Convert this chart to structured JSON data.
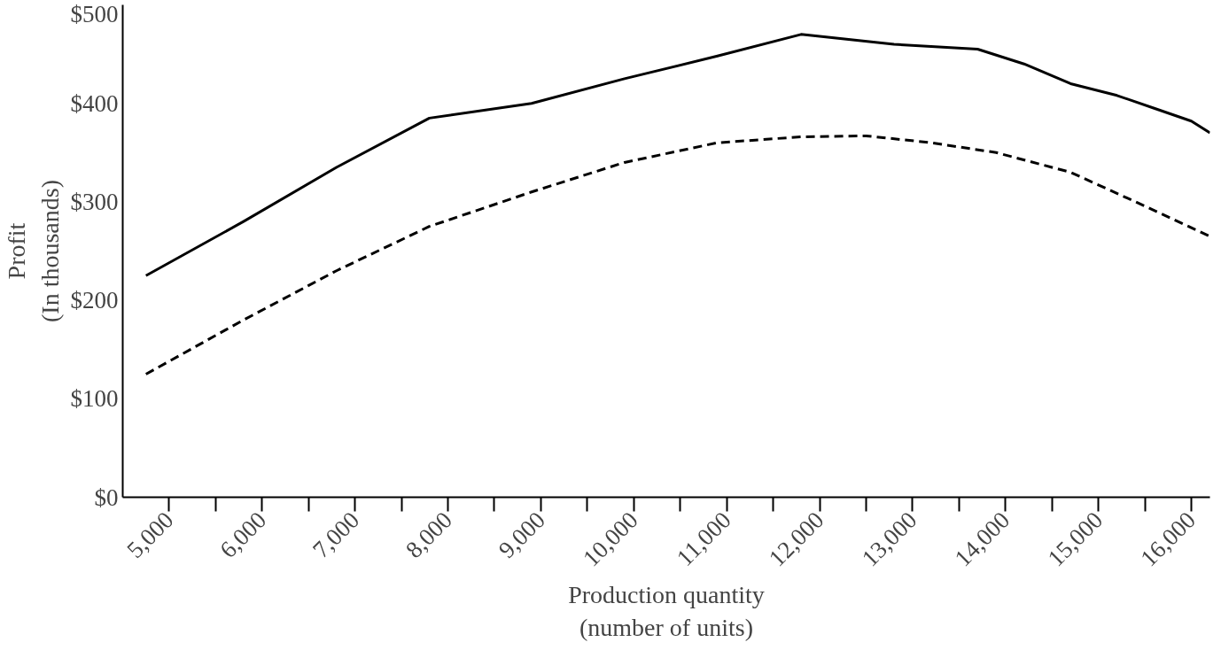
{
  "chart_data": {
    "type": "line",
    "xlabel": "Production quantity\n(number of units)",
    "ylabel": "Profit\n(In thousands)",
    "xlim": [
      4500,
      16200
    ],
    "ylim": [
      0,
      500
    ],
    "xticks": [
      {
        "value": 5000,
        "label": "5,000"
      },
      {
        "value": 5500,
        "label": null
      },
      {
        "value": 6000,
        "label": "6,000"
      },
      {
        "value": 6500,
        "label": null
      },
      {
        "value": 7000,
        "label": "7,000"
      },
      {
        "value": 7500,
        "label": null
      },
      {
        "value": 8000,
        "label": "8,000"
      },
      {
        "value": 8500,
        "label": null
      },
      {
        "value": 9000,
        "label": "9,000"
      },
      {
        "value": 9500,
        "label": null
      },
      {
        "value": 10000,
        "label": "10,000"
      },
      {
        "value": 10500,
        "label": null
      },
      {
        "value": 11000,
        "label": "11,000"
      },
      {
        "value": 11500,
        "label": null
      },
      {
        "value": 12000,
        "label": "12,000"
      },
      {
        "value": 12500,
        "label": null
      },
      {
        "value": 13000,
        "label": "13,000"
      },
      {
        "value": 13500,
        "label": null
      },
      {
        "value": 14000,
        "label": "14,000"
      },
      {
        "value": 14500,
        "label": null
      },
      {
        "value": 15000,
        "label": "15,000"
      },
      {
        "value": 15500,
        "label": null
      },
      {
        "value": 16000,
        "label": "16,000"
      }
    ],
    "yticks": [
      {
        "value": 0,
        "label": "$0"
      },
      {
        "value": 100,
        "label": "$100"
      },
      {
        "value": 200,
        "label": "$200"
      },
      {
        "value": 300,
        "label": "$300"
      },
      {
        "value": 400,
        "label": "$400"
      },
      {
        "value": 500,
        "label": "$500"
      }
    ],
    "grid": false,
    "marker": "none",
    "series": [
      {
        "color": "#000000",
        "line_style": "solid",
        "x": [
          4750,
          5800,
          6800,
          7800,
          8900,
          9900,
          10900,
          11800,
          12800,
          13700,
          14200,
          14700,
          15200,
          15600,
          16000,
          16200
        ],
        "values": [
          225,
          280,
          335,
          385,
          400,
          425,
          448,
          470,
          460,
          455,
          440,
          420,
          408,
          395,
          382,
          370
        ]
      },
      {
        "color": "#000000",
        "line_style": "dashed",
        "x": [
          4750,
          5800,
          6800,
          7800,
          8900,
          9900,
          10900,
          11800,
          12500,
          13200,
          13900,
          14700,
          15400,
          16200
        ],
        "values": [
          125,
          180,
          230,
          275,
          310,
          340,
          360,
          366,
          367,
          360,
          350,
          330,
          300,
          265
        ]
      }
    ]
  }
}
